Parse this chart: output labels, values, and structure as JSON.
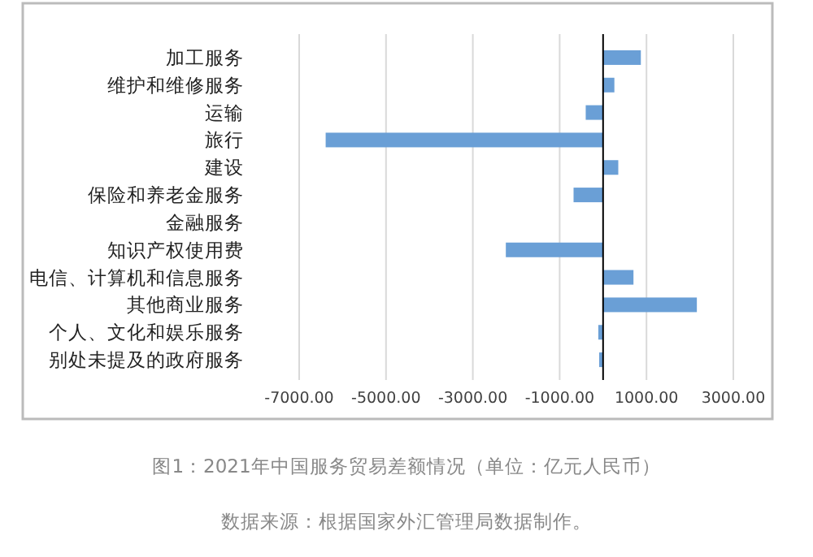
{
  "chart_data": {
    "type": "bar",
    "orientation": "horizontal",
    "categories": [
      "加工服务",
      "维护和维修服务",
      "运输",
      "旅行",
      "建设",
      "保险和养老金服务",
      "金融服务",
      "知识产权使用费",
      "电信、计算机和信息服务",
      "其他商业服务",
      "个人、文化和娱乐服务",
      "别处未提及的政府服务"
    ],
    "values": [
      870,
      260,
      -400,
      -6390,
      350,
      -680,
      0,
      -2240,
      700,
      2160,
      -110,
      -90
    ],
    "color": "#6a9fd6",
    "xlim": [
      -7000,
      3000
    ],
    "xticks": [
      {
        "value": -7000,
        "label": "-7000.00"
      },
      {
        "value": -5000,
        "label": "-5000.00"
      },
      {
        "value": -3000,
        "label": "-3000.00"
      },
      {
        "value": -1000,
        "label": "-1000.00"
      },
      {
        "value": 1000,
        "label": "1000.00"
      },
      {
        "value": 3000,
        "label": "3000.00"
      }
    ],
    "grid": "x",
    "annotations": [
      "图1：2021年中国服务贸易差额情况（单位：亿元人民币）",
      "数据来源：根据国家外汇管理局数据制作。"
    ]
  }
}
